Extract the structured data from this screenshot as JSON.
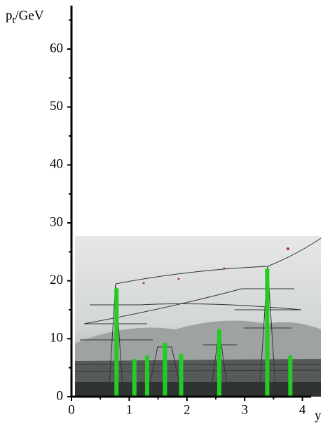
{
  "chart_data": {
    "type": "bar",
    "y_label": {
      "main": "p",
      "sub": "t",
      "unit": "/GeV"
    },
    "x_label": "y",
    "x": [
      0.78,
      1.09,
      1.31,
      1.62,
      1.9,
      2.56,
      3.39,
      3.79
    ],
    "values": [
      18.7,
      6.5,
      7.1,
      9.3,
      7.4,
      11.6,
      22.1,
      7.1
    ],
    "color": "#22cc22",
    "xlim": [
      0,
      4.15
    ],
    "xticks": [
      0,
      1,
      2,
      3,
      4
    ],
    "xminorticks": [
      0.5,
      1.5,
      2.5,
      3.5
    ],
    "ylim": [
      0,
      67.5
    ],
    "yticks": [
      0,
      10,
      20,
      30,
      40,
      50,
      60
    ],
    "yminorticks": [
      5,
      15,
      25,
      35,
      45,
      55,
      65
    ]
  }
}
